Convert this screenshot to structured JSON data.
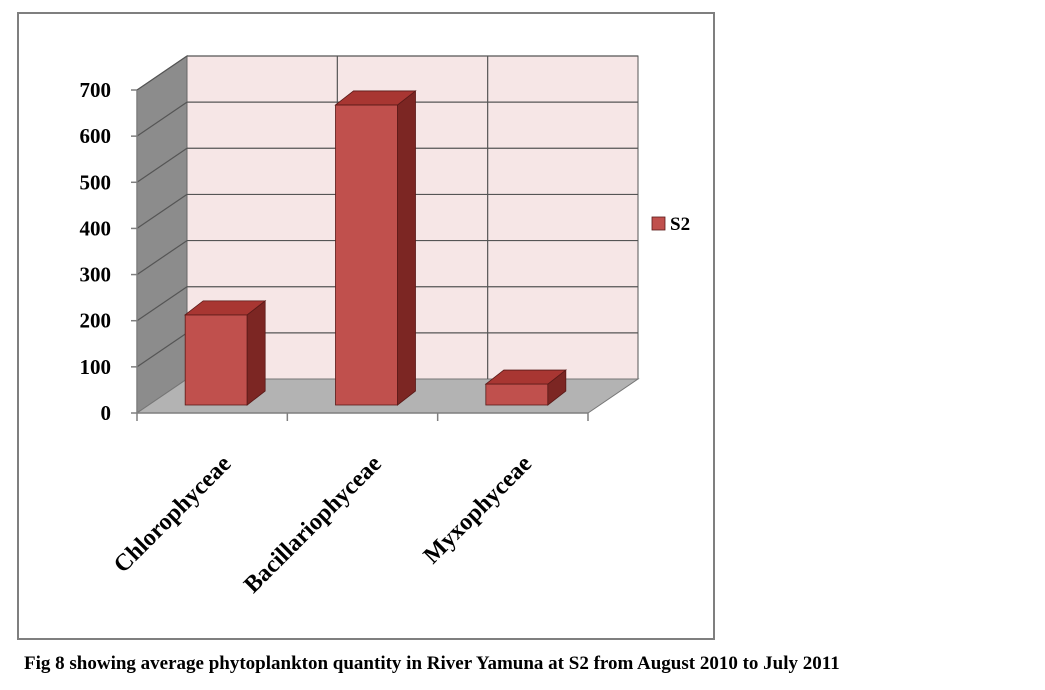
{
  "chart_data": {
    "type": "bar",
    "style": "3d-column",
    "categories": [
      "Chlorophyceae",
      "Bacillariophyceae",
      "Myxophyceae"
    ],
    "series": [
      {
        "name": "S2",
        "values": [
          230,
          685,
          80
        ],
        "color": "#c0504d"
      }
    ],
    "ylim": [
      0,
      700
    ],
    "yticks": [
      "0",
      "100",
      "200",
      "300",
      "400",
      "500",
      "600",
      "700"
    ],
    "grid": true,
    "legend": "right",
    "colors": {
      "bar_front": "#c0504d",
      "bar_top": "#a83632",
      "bar_side": "#7c2623",
      "wall": "#f6e6e6",
      "side_wall": "#8c8c8c",
      "floor": "#b3b3b3",
      "grid": "#555555"
    }
  },
  "caption": "Fig 8 showing average phytoplankton quantity in River Yamuna at S2 from August 2010 to July 2011"
}
